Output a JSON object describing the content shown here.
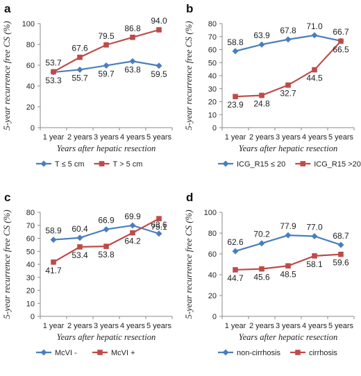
{
  "chart_data": [
    {
      "type": "line",
      "panel": "a",
      "ylabel": "5-year recurrence free CS (%)",
      "xlabel": "Years after hepatic resection",
      "categories": [
        "1 year",
        "2 years",
        "3 years",
        "4 years",
        "5 years"
      ],
      "ylim": [
        0,
        100
      ],
      "yticks": [
        0,
        20,
        40,
        60,
        80,
        100
      ],
      "grid": false,
      "legend_position": "bottom",
      "series": [
        {
          "name": "T ≤ 5 cm",
          "color": "#4a7ebb",
          "marker": "diamond",
          "values": [
            53.3,
            55.7,
            59.7,
            63.8,
            59.5
          ]
        },
        {
          "name": "T > 5 cm",
          "color": "#be4b48",
          "marker": "square",
          "values": [
            53.7,
            67.6,
            79.5,
            86.8,
            94.0
          ]
        }
      ]
    },
    {
      "type": "line",
      "panel": "b",
      "ylabel": "5-year recurrence free CS (%)",
      "xlabel": "Years after hepatic resection",
      "categories": [
        "1 year",
        "2 years",
        "3 years",
        "4 years",
        "5 years"
      ],
      "ylim": [
        0,
        80
      ],
      "yticks": [
        0,
        10,
        20,
        30,
        40,
        50,
        60,
        70,
        80
      ],
      "grid": false,
      "legend_position": "bottom",
      "series": [
        {
          "name": "ICG_R15 ≤ 20",
          "color": "#4a7ebb",
          "marker": "diamond",
          "values": [
            58.8,
            63.9,
            67.8,
            71.0,
            66.7
          ]
        },
        {
          "name": "ICG_R15 >20",
          "color": "#be4b48",
          "marker": "square",
          "values": [
            23.9,
            24.8,
            32.7,
            44.5,
            66.5
          ]
        }
      ]
    },
    {
      "type": "line",
      "panel": "c",
      "ylabel": "5-year recurrence free CS (%)",
      "xlabel": "Years after hepatic resection",
      "categories": [
        "1 year",
        "2 years",
        "3 years",
        "4 years",
        "5 years"
      ],
      "ylim": [
        0,
        80
      ],
      "yticks": [
        0,
        10,
        20,
        30,
        40,
        50,
        60,
        70,
        80
      ],
      "grid": false,
      "legend_position": "bottom",
      "series": [
        {
          "name": "McVI -",
          "color": "#4a7ebb",
          "marker": "diamond",
          "values": [
            58.9,
            60.4,
            66.9,
            69.9,
            63.6
          ]
        },
        {
          "name": "McVI +",
          "color": "#be4b48",
          "marker": "square",
          "values": [
            41.7,
            53.4,
            53.8,
            64.2,
            75.1
          ]
        }
      ]
    },
    {
      "type": "line",
      "panel": "d",
      "ylabel": "5-year recurrence free CS (%)",
      "xlabel": "Years after hepatic resection",
      "categories": [
        "1 year",
        "2 years",
        "3 years",
        "4 years",
        "5 years"
      ],
      "ylim": [
        0,
        100
      ],
      "yticks": [
        0,
        20,
        40,
        60,
        80,
        100
      ],
      "grid": false,
      "legend_position": "bottom",
      "series": [
        {
          "name": "non-cirrhosis",
          "color": "#4a7ebb",
          "marker": "diamond",
          "values": [
            62.6,
            70.2,
            77.9,
            77.0,
            68.7
          ]
        },
        {
          "name": "cirrhosis",
          "color": "#be4b48",
          "marker": "square",
          "values": [
            44.7,
            45.6,
            48.5,
            58.1,
            59.6
          ]
        }
      ]
    }
  ]
}
